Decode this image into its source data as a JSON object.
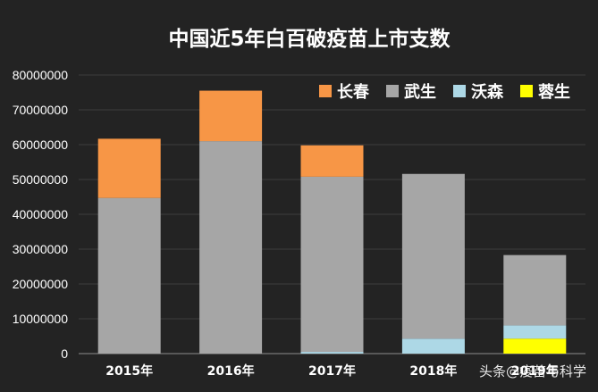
{
  "chart_data": {
    "type": "bar",
    "stacked": true,
    "title": "中国近5年白百破疫苗上市支数",
    "categories": [
      "2015年",
      "2016年",
      "2017年",
      "2018年",
      "2019年"
    ],
    "series": [
      {
        "name": "蓉生",
        "color": "#ffff00",
        "values": [
          0,
          0,
          0,
          0,
          4300000
        ]
      },
      {
        "name": "沃森",
        "color": "#add8e6",
        "values": [
          0,
          0,
          500000,
          4300000,
          3800000
        ]
      },
      {
        "name": "武生",
        "color": "#a6a6a6",
        "values": [
          44700000,
          61000000,
          50300000,
          47300000,
          20200000
        ]
      },
      {
        "name": "长春",
        "color": "#f79646",
        "values": [
          17000000,
          14500000,
          9000000,
          0,
          0
        ]
      }
    ],
    "legend_order": [
      "长春",
      "武生",
      "沃森",
      "蓉生"
    ],
    "ylim": [
      0,
      80000000
    ],
    "yticks": [
      "0",
      "10000000",
      "20000000",
      "30000000",
      "40000000",
      "50000000",
      "60000000",
      "70000000",
      "80000000"
    ],
    "legend_position": "top-right",
    "grid": true
  },
  "watermark": "头条@疫苗与科学"
}
